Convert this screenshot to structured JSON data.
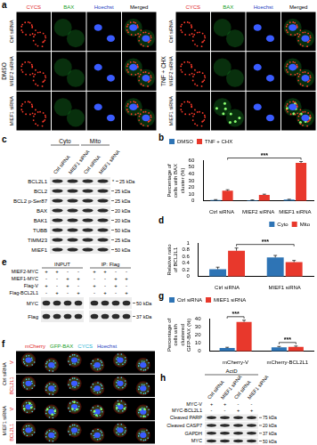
{
  "panel_letters": [
    "a",
    "b",
    "c",
    "d",
    "e",
    "f",
    "g",
    "h"
  ],
  "microscopy": [
    {
      "conditions": [
        "DMSO",
        "TNF + CHX"
      ],
      "channels": [
        "CYCS",
        "BAX",
        "Hoechst",
        "Merged"
      ],
      "rows": [
        "Ctrl siRNA",
        "MIEF2 siRNA",
        "MIEF1 siRNA"
      ]
    },
    {
      "channels": [
        "mCherry",
        "GFP-BAX",
        "CYCS",
        "Hoechst"
      ],
      "groups": [
        {
          "name": "Ctrl siRNA",
          "rows": [
            "V",
            "BCL2L1"
          ]
        },
        {
          "name": "MIEF1 siRNA",
          "rows": [
            "V",
            "BCL2L1"
          ]
        }
      ]
    }
  ],
  "blots": [
    {
      "column_groups": [
        {
          "name": "Cyto",
          "columns": [
            "Ctrl siRNA",
            "MIEF1 siRNA"
          ]
        },
        {
          "name": "Mito",
          "columns": [
            "Ctrl siRNA",
            "MIEF1 siRNA"
          ]
        }
      ],
      "rows": [
        {
          "name": "BCL2L1",
          "kda": "25 kDa",
          "mark": "*"
        },
        {
          "name": "BCL2",
          "kda": "25 kDa"
        },
        {
          "name": "BCL2 p-Ser87",
          "kda": "25 kDa"
        },
        {
          "name": "BAX",
          "kda": "20 kDa"
        },
        {
          "name": "BAK1",
          "kda": "20 kDa"
        },
        {
          "name": "TUBB",
          "kda": "50 kDa"
        },
        {
          "name": "TIMM23",
          "kda": "25 kDa"
        },
        {
          "name": "MIEF1",
          "kda": "50 kDa"
        }
      ]
    },
    {
      "groups": [
        "INPUT",
        "IP: Flag"
      ],
      "conditions": [
        {
          "name": "MIEF2-MYC",
          "signs": [
            "+",
            "+",
            "-",
            "-"
          ]
        },
        {
          "name": "MIEF1-MYC",
          "signs": [
            "-",
            "-",
            "+",
            "+"
          ]
        },
        {
          "name": "Flag-V",
          "signs": [
            "+",
            "-",
            "+",
            "-"
          ]
        },
        {
          "name": "Flag-BCL2L1",
          "signs": [
            "-",
            "+",
            "-",
            "+"
          ]
        }
      ],
      "rows": [
        {
          "name": "MYC",
          "kda": "50 kDa"
        },
        {
          "name": "Flag",
          "kda": "37 kDa"
        }
      ]
    },
    {
      "header": "ActD",
      "columns": [
        "Ctrl siRNA",
        "MIEF1 siRNA",
        "Ctrl siRNA",
        "MIEF1 siRNA"
      ],
      "conditions": [
        {
          "name": "MYC-V",
          "signs": [
            "+",
            "+",
            "-",
            "-"
          ]
        },
        {
          "name": "MYC-BCL2L1",
          "signs": [
            "-",
            "-",
            "+",
            "+"
          ]
        }
      ],
      "rows": [
        {
          "name": "Cleaved PARP",
          "kda": "75 kDa"
        },
        {
          "name": "Cleaved CASP7",
          "kda": "20 kDa"
        },
        {
          "name": "GAPDH",
          "kda": "37 kDa"
        },
        {
          "name": "MYC",
          "kda": "50 kDa"
        }
      ]
    }
  ],
  "chart_data": [
    {
      "type": "bar",
      "y_label": "Percentage of cells with BAX cluster (%)",
      "categories": [
        "Ctrl siRNA",
        "MIEF2 siRNA",
        "MIEF1 siRNA"
      ],
      "series": [
        {
          "name": "DMSO",
          "color": "#2e74b5",
          "values": [
            1.5,
            1,
            2
          ],
          "errors": [
            0.5,
            0.5,
            0.5
          ]
        },
        {
          "name": "TNF + CHX",
          "color": "#e8382c",
          "values": [
            15,
            9,
            56
          ],
          "errors": [
            1.5,
            1,
            2
          ]
        }
      ],
      "ylim": [
        0,
        60
      ],
      "yticks": [
        0,
        10,
        20,
        30,
        40,
        50,
        60
      ],
      "grid": false,
      "legend": "top-left",
      "annotations": [
        "***"
      ]
    },
    {
      "type": "bar",
      "y_label": "Relative ratio of BCL2L1",
      "categories": [
        "Ctrl siRNA",
        "MIEF1 siRNA"
      ],
      "series": [
        {
          "name": "Cyto",
          "color": "#2e74b5",
          "values": [
            0.22,
            0.57
          ],
          "errors": [
            0.06,
            0.06
          ]
        },
        {
          "name": "Mito",
          "color": "#e8382c",
          "values": [
            0.77,
            0.43
          ],
          "errors": [
            0.08,
            0.05
          ]
        }
      ],
      "ylim": [
        0,
        1
      ],
      "yticks": [
        0,
        0.2,
        0.4,
        0.6,
        0.8,
        1
      ],
      "grid": false,
      "legend": "top-right",
      "annotations": [
        "***"
      ]
    },
    {
      "type": "bar",
      "y_label": "Percentage of cells with clustered GFP-BAX (%)",
      "categories": [
        "mCherry-V",
        "mCherry-BCL2L1"
      ],
      "series": [
        {
          "name": "Ctrl siRNA",
          "color": "#2e74b5",
          "values": [
            4,
            5
          ],
          "errors": [
            1,
            1
          ]
        },
        {
          "name": "MIEF1 siRNA",
          "color": "#e8382c",
          "values": [
            36,
            5.5
          ],
          "errors": [
            2,
            1
          ]
        }
      ],
      "ylim": [
        0,
        40
      ],
      "yticks": [
        0,
        10,
        20,
        30,
        40
      ],
      "grid": false,
      "legend": "top-left",
      "annotations": [
        "***",
        "***"
      ]
    }
  ]
}
